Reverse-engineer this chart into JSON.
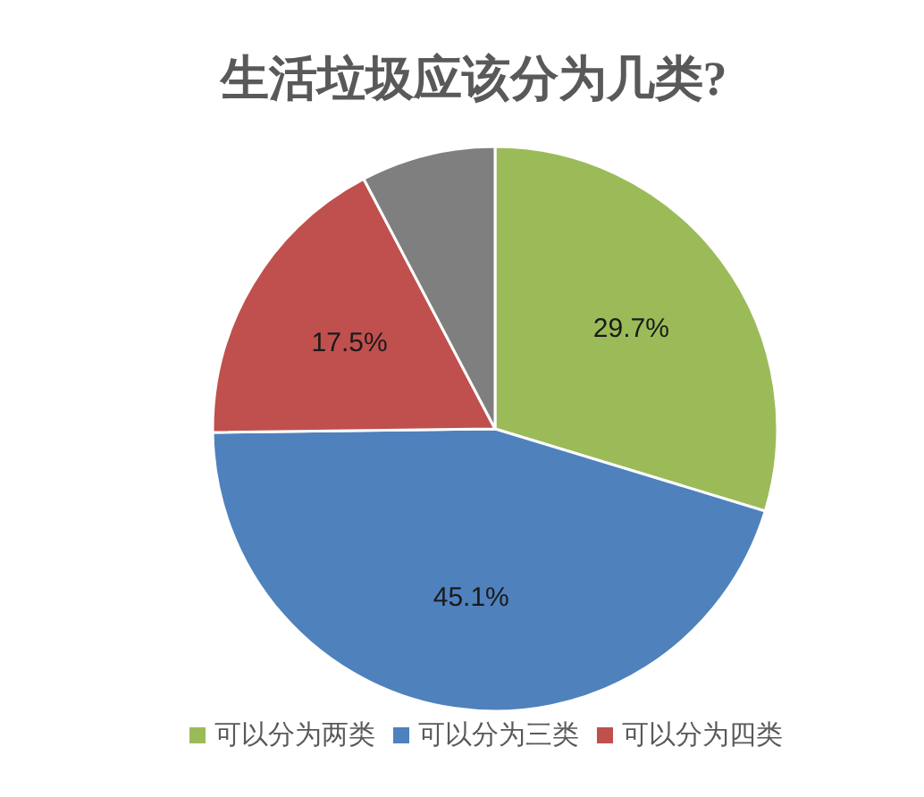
{
  "chart_data": {
    "type": "pie",
    "title": "生活垃圾应该分为几类?",
    "categories": [
      "可以分为两类",
      "可以分为三类",
      "可以分为四类",
      null
    ],
    "values": [
      29.7,
      45.1,
      17.5,
      7.7
    ],
    "colors": [
      "#9bbb59",
      "#4f81bd",
      "#c0504d",
      "#7f7f7f"
    ],
    "value_labels": [
      "29.7%",
      "45.1%",
      "17.5%",
      null
    ],
    "legend": "bottom"
  }
}
